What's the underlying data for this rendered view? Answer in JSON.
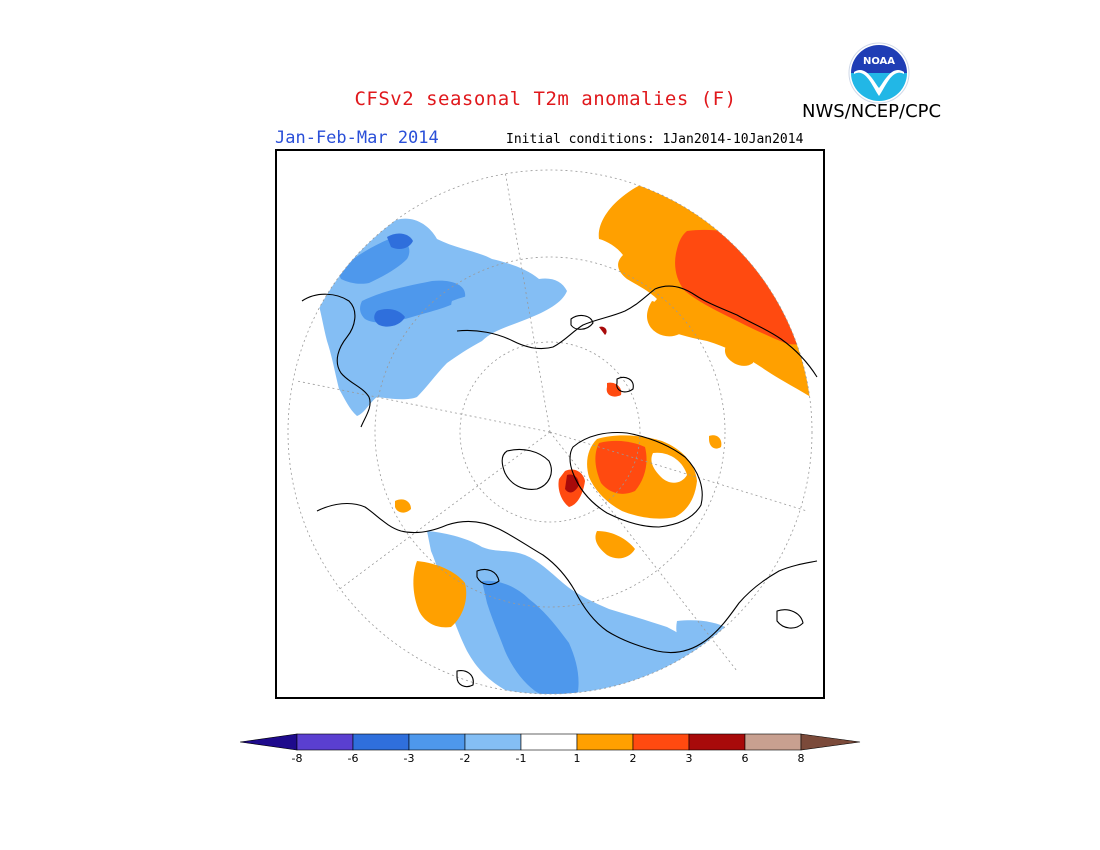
{
  "title": "CFSv2 seasonal T2m anomalies (F)",
  "agency": "NWS/NCEP/CPC",
  "logo_text": "NOAA",
  "period": "Jan-Feb-Mar 2014",
  "initial_conditions": "Initial conditions: 1Jan2014-10Jan2014",
  "colorbar": {
    "ticks": [
      "-8",
      "-6",
      "-3",
      "-2",
      "-1",
      "1",
      "2",
      "3",
      "6",
      "8"
    ],
    "colors": [
      "#1e0a8c",
      "#5a3fd0",
      "#2f6fdc",
      "#4e98ec",
      "#84bef4",
      "#ffffff",
      "#ffa000",
      "#ff4a10",
      "#a80a0a",
      "#c8a090",
      "#7b4a3a"
    ]
  },
  "anomaly_colors": {
    "cold_1": "#84bef4",
    "cold_2": "#4e98ec",
    "cold_3": "#2f6fdc",
    "warm_1": "#ffa000",
    "warm_2": "#ff4a10",
    "warm_3": "#a80a0a"
  }
}
